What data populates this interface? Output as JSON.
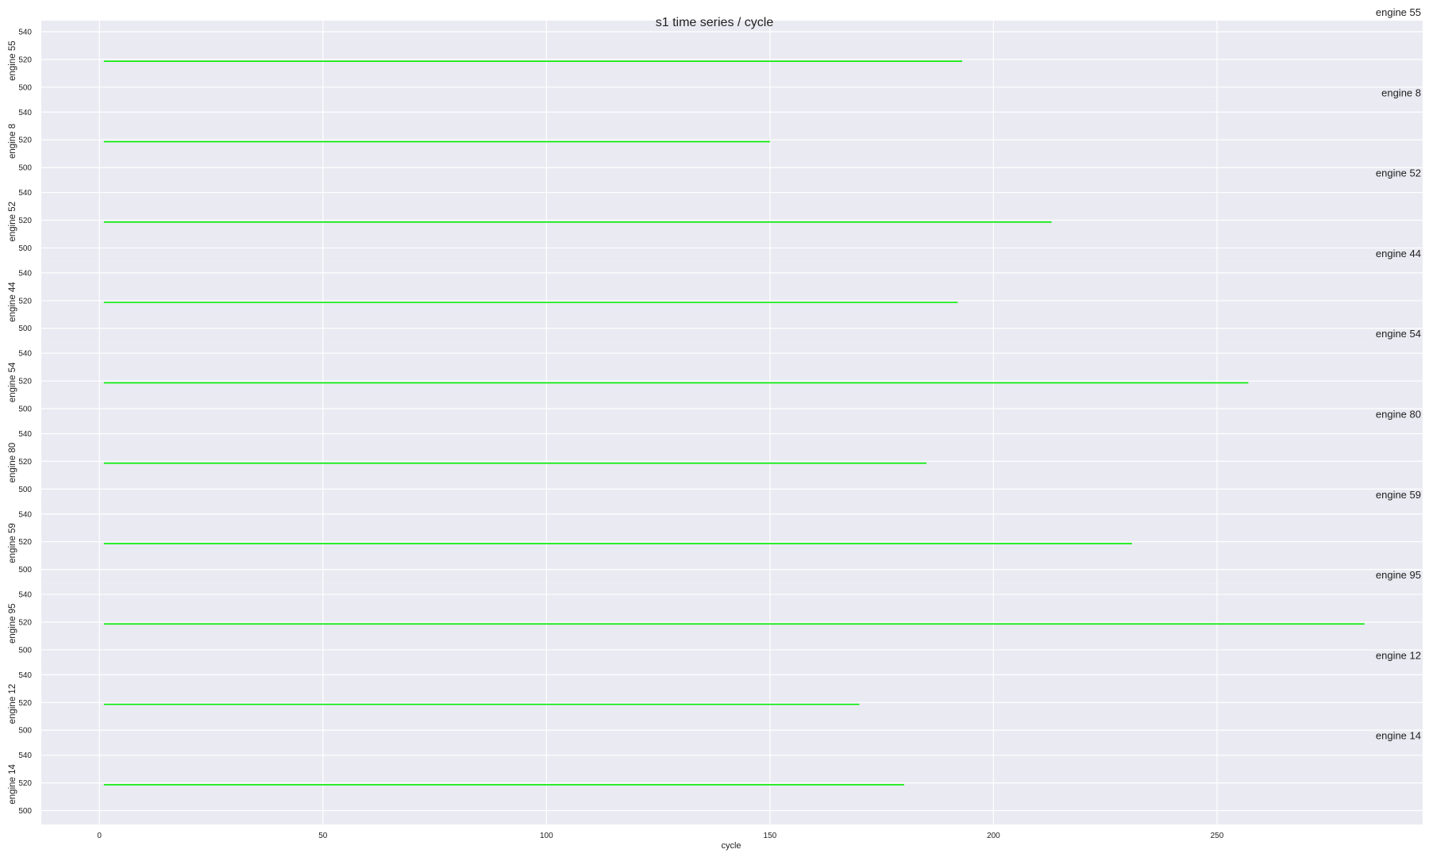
{
  "chart_data": {
    "type": "line",
    "title": "s1 time series / cycle",
    "xlabel": "cycle",
    "xlim": [
      -13,
      296
    ],
    "x_ticks": [
      0,
      50,
      100,
      150,
      200,
      250
    ],
    "ylim": [
      490,
      548
    ],
    "y_ticks": [
      500,
      520,
      540
    ],
    "line_color": "#00ee00",
    "background_color": "#eaeaf2",
    "grid": true,
    "panels": [
      {
        "ylabel": "engine 55",
        "label": "engine 55",
        "x_start": 1,
        "x_end": 193,
        "value": 518.67
      },
      {
        "ylabel": "engine 8",
        "label": "engine 8",
        "x_start": 1,
        "x_end": 150,
        "value": 518.67
      },
      {
        "ylabel": "engine 52",
        "label": "engine 52",
        "x_start": 1,
        "x_end": 213,
        "value": 518.67
      },
      {
        "ylabel": "engine 44",
        "label": "engine 44",
        "x_start": 1,
        "x_end": 192,
        "value": 518.67
      },
      {
        "ylabel": "engine 54",
        "label": "engine 54",
        "x_start": 1,
        "x_end": 257,
        "value": 518.67
      },
      {
        "ylabel": "engine 80",
        "label": "engine 80",
        "x_start": 1,
        "x_end": 185,
        "value": 518.67
      },
      {
        "ylabel": "engine 59",
        "label": "engine 59",
        "x_start": 1,
        "x_end": 231,
        "value": 518.67
      },
      {
        "ylabel": "engine 95",
        "label": "engine 95",
        "x_start": 1,
        "x_end": 283,
        "value": 518.67
      },
      {
        "ylabel": "engine 12",
        "label": "engine 12",
        "x_start": 1,
        "x_end": 170,
        "value": 518.67
      },
      {
        "ylabel": "engine 14",
        "label": "engine 14",
        "x_start": 1,
        "x_end": 180,
        "value": 518.67
      }
    ]
  }
}
